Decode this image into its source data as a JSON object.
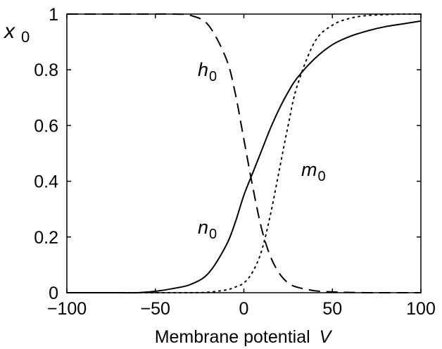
{
  "chart_data": {
    "type": "line",
    "title": "",
    "xlabel": "Membrane potential",
    "xlabel_var": "V",
    "ylabel": "x",
    "ylabel_sub": "0",
    "xlim": [
      -100,
      100
    ],
    "ylim": [
      0,
      1
    ],
    "x_ticks": [
      -100,
      -50,
      0,
      50,
      100
    ],
    "x_tick_labels": [
      "−100",
      "−50",
      "0",
      "50",
      "100"
    ],
    "y_ticks": [
      0,
      0.2,
      0.4,
      0.6,
      0.8,
      1
    ],
    "y_tick_labels": [
      "0",
      "0.2",
      "0.4",
      "0.6",
      "0.8",
      "1"
    ],
    "grid": false,
    "legend": "none",
    "x": [
      -100,
      -90,
      -80,
      -70,
      -60,
      -50,
      -40,
      -30,
      -20,
      -10,
      -5,
      0,
      5,
      10,
      15,
      20,
      25,
      30,
      40,
      50,
      60,
      70,
      80,
      90,
      100
    ],
    "series": [
      {
        "name": "h",
        "name_sub": "0",
        "style": "dashed",
        "values": [
          1.0,
          1.0,
          1.0,
          1.0,
          1.0,
          1.0,
          1.0,
          0.995,
          0.96,
          0.84,
          0.72,
          0.55,
          0.38,
          0.23,
          0.13,
          0.07,
          0.035,
          0.02,
          0.007,
          0.003,
          0.001,
          0.0,
          0.0,
          0.0,
          0.0
        ]
      },
      {
        "name": "n",
        "name_sub": "0",
        "style": "solid",
        "values": [
          0.0,
          0.0,
          0.0,
          0.0,
          0.0,
          0.005,
          0.015,
          0.03,
          0.07,
          0.17,
          0.25,
          0.35,
          0.43,
          0.51,
          0.59,
          0.66,
          0.72,
          0.77,
          0.84,
          0.89,
          0.92,
          0.94,
          0.955,
          0.965,
          0.975
        ]
      },
      {
        "name": "m",
        "name_sub": "0",
        "style": "dotted",
        "values": [
          0.0,
          0.0,
          0.0,
          0.0,
          0.0,
          0.0,
          0.0,
          0.0,
          0.002,
          0.01,
          0.02,
          0.035,
          0.075,
          0.15,
          0.28,
          0.44,
          0.6,
          0.74,
          0.9,
          0.96,
          0.985,
          0.995,
          0.998,
          1.0,
          1.0
        ]
      }
    ]
  }
}
